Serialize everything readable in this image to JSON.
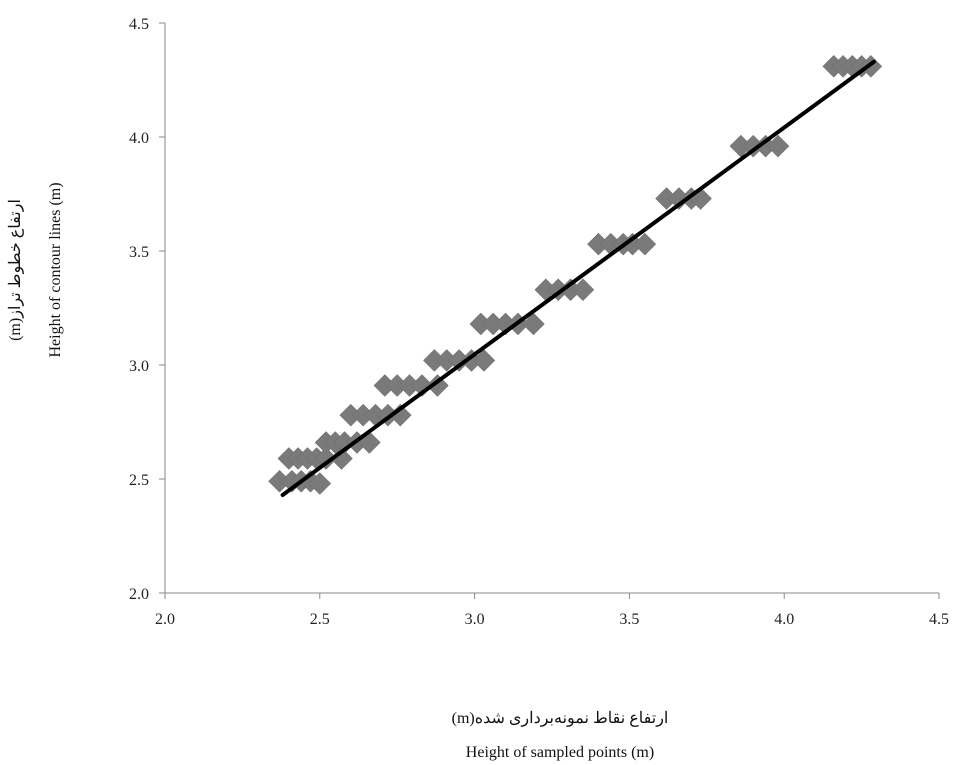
{
  "chart_data": {
    "type": "scatter",
    "title": "",
    "xlabel_fa": "ارتفاع نقاط نمونه‌برداری شده(m)",
    "xlabel": "Height of sampled points (m)",
    "ylabel_fa": "ارتفاع خطوط تراز(m)",
    "ylabel": "Height of contour lines (m)",
    "xlim": [
      2.0,
      4.5
    ],
    "ylim": [
      2.0,
      4.5
    ],
    "x_ticks": [
      "2.0",
      "2.5",
      "3.0",
      "3.5",
      "4.0",
      "4.5"
    ],
    "y_ticks": [
      "2.0",
      "2.5",
      "3.0",
      "3.5",
      "4.0",
      "4.5"
    ],
    "grid": false,
    "legend": "none",
    "marker": "diamond",
    "marker_color": "#7a7a7a",
    "line_color": "#000000",
    "series": [
      {
        "type": "scatter",
        "points": [
          [
            2.37,
            2.49
          ],
          [
            2.41,
            2.49
          ],
          [
            2.44,
            2.49
          ],
          [
            2.47,
            2.49
          ],
          [
            2.5,
            2.48
          ],
          [
            2.4,
            2.59
          ],
          [
            2.43,
            2.59
          ],
          [
            2.46,
            2.59
          ],
          [
            2.49,
            2.59
          ],
          [
            2.52,
            2.59
          ],
          [
            2.57,
            2.59
          ],
          [
            2.52,
            2.66
          ],
          [
            2.55,
            2.66
          ],
          [
            2.58,
            2.66
          ],
          [
            2.62,
            2.66
          ],
          [
            2.66,
            2.66
          ],
          [
            2.6,
            2.78
          ],
          [
            2.64,
            2.78
          ],
          [
            2.68,
            2.78
          ],
          [
            2.72,
            2.78
          ],
          [
            2.76,
            2.78
          ],
          [
            2.71,
            2.91
          ],
          [
            2.75,
            2.91
          ],
          [
            2.79,
            2.91
          ],
          [
            2.83,
            2.91
          ],
          [
            2.88,
            2.91
          ],
          [
            2.87,
            3.02
          ],
          [
            2.91,
            3.02
          ],
          [
            2.95,
            3.02
          ],
          [
            2.99,
            3.02
          ],
          [
            3.03,
            3.02
          ],
          [
            3.02,
            3.18
          ],
          [
            3.06,
            3.18
          ],
          [
            3.1,
            3.18
          ],
          [
            3.14,
            3.18
          ],
          [
            3.19,
            3.18
          ],
          [
            3.23,
            3.33
          ],
          [
            3.27,
            3.33
          ],
          [
            3.31,
            3.33
          ],
          [
            3.35,
            3.33
          ],
          [
            3.4,
            3.53
          ],
          [
            3.44,
            3.53
          ],
          [
            3.48,
            3.53
          ],
          [
            3.51,
            3.53
          ],
          [
            3.55,
            3.53
          ],
          [
            3.62,
            3.73
          ],
          [
            3.66,
            3.73
          ],
          [
            3.7,
            3.73
          ],
          [
            3.73,
            3.73
          ],
          [
            3.86,
            3.96
          ],
          [
            3.9,
            3.96
          ],
          [
            3.94,
            3.96
          ],
          [
            3.98,
            3.96
          ],
          [
            4.16,
            4.31
          ],
          [
            4.19,
            4.31
          ],
          [
            4.22,
            4.31
          ],
          [
            4.25,
            4.31
          ],
          [
            4.28,
            4.31
          ]
        ]
      },
      {
        "type": "line",
        "points": [
          [
            2.38,
            2.43
          ],
          [
            4.29,
            4.33
          ]
        ]
      }
    ]
  }
}
